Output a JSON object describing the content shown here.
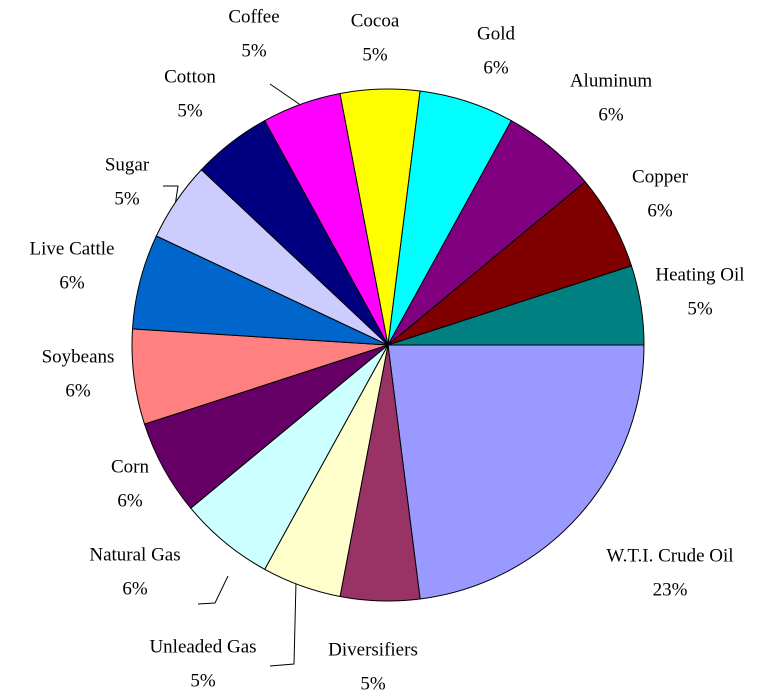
{
  "chart_data": {
    "type": "pie",
    "categories": [
      "W.T.I. Crude Oil",
      "Diversifiers",
      "Unleaded Gas",
      "Natural Gas",
      "Corn",
      "Soybeans",
      "Live Cattle",
      "Sugar",
      "Cotton",
      "Coffee",
      "Cocoa",
      "Gold",
      "Aluminum",
      "Copper",
      "Heating Oil"
    ],
    "values": [
      23,
      5,
      5,
      6,
      6,
      6,
      6,
      5,
      5,
      5,
      5,
      6,
      6,
      6,
      5
    ],
    "value_labels": [
      "23%",
      "5%",
      "5%",
      "6%",
      "6%",
      "6%",
      "6%",
      "5%",
      "5%",
      "5%",
      "5%",
      "6%",
      "6%",
      "6%",
      "5%"
    ],
    "colors": [
      "#9999ff",
      "#993366",
      "#ffffcc",
      "#ccffff",
      "#660066",
      "#ff8080",
      "#0066cc",
      "#ccccff",
      "#000080",
      "#ff00ff",
      "#ffff00",
      "#00ffff",
      "#800080",
      "#800000",
      "#008080"
    ]
  }
}
